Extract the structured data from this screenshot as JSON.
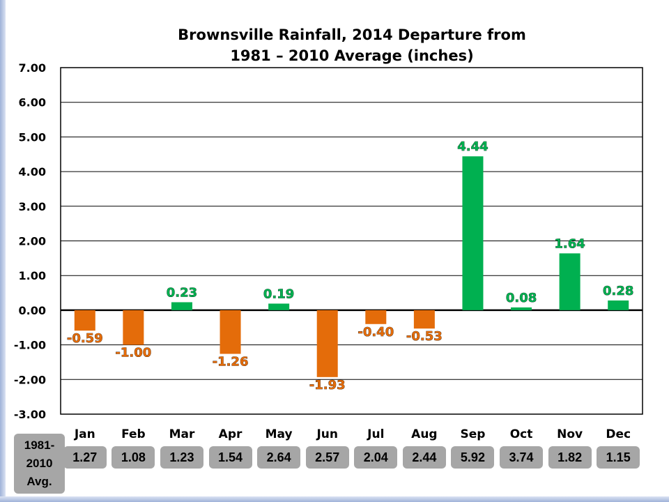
{
  "chart_data": {
    "type": "bar",
    "title_lines": [
      "Brownsville Rainfall, 2014 Departure from",
      "1981 – 2010 Average (inches)"
    ],
    "categories": [
      "Jan",
      "Feb",
      "Mar",
      "Apr",
      "May",
      "Jun",
      "Jul",
      "Aug",
      "Sep",
      "Oct",
      "Nov",
      "Dec"
    ],
    "values": [
      -0.59,
      -1.0,
      0.23,
      -1.26,
      0.19,
      -1.93,
      -0.4,
      -0.53,
      4.44,
      0.08,
      1.64,
      0.28
    ],
    "value_labels": [
      "-0.59",
      "-1.00",
      "0.23",
      "-1.26",
      "0.19",
      "-1.93",
      "-0.40",
      "-0.53",
      "4.44",
      "0.08",
      "1.64",
      "0.28"
    ],
    "ylim": [
      -3,
      7
    ],
    "yticks": [
      "7.00",
      "6.00",
      "5.00",
      "4.00",
      "3.00",
      "2.00",
      "1.00",
      "0.00",
      "-1.00",
      "-2.00",
      "-3.00"
    ],
    "ytick_values": [
      7,
      6,
      5,
      4,
      3,
      2,
      1,
      0,
      -1,
      -2,
      -3
    ],
    "grid": true,
    "colors": {
      "positive": "#00b050",
      "negative": "#e46c0a"
    }
  },
  "average_row": {
    "label_lines": [
      "1981-",
      "2010",
      "Avg."
    ],
    "values": [
      "1.27",
      "1.08",
      "1.23",
      "1.54",
      "2.64",
      "2.57",
      "2.04",
      "2.44",
      "5.92",
      "3.74",
      "1.82",
      "1.15"
    ]
  }
}
